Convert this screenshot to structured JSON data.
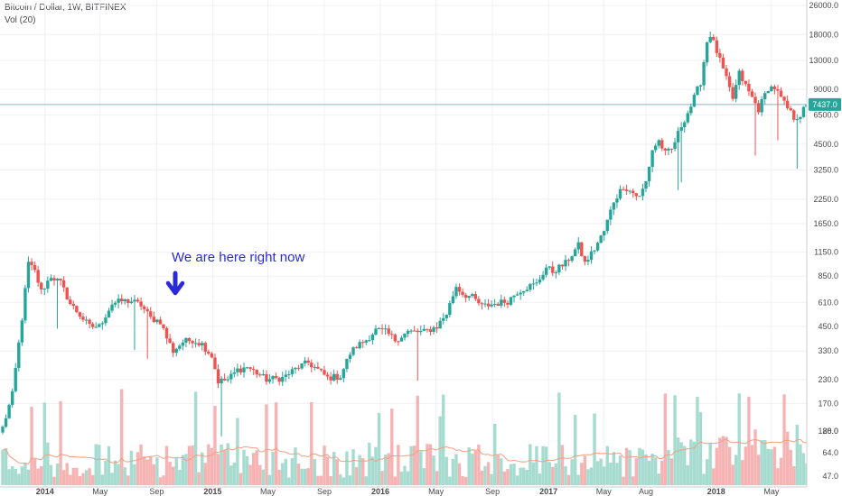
{
  "header": {
    "title": "Bitcoin / Dollar, 1W, BITFINEX",
    "volume_label": "Vol (20)"
  },
  "chart_data": {
    "type": "candlestick",
    "y_scale": "log",
    "price_ticks": [
      47.0,
      64.0,
      88.0,
      120.0,
      170.0,
      230.0,
      330.0,
      450.0,
      610.0,
      850.0,
      1150.0,
      1650.0,
      2250.0,
      3250.0,
      4500.0,
      6500.0,
      9000.0,
      13000.0,
      18000.0,
      26000.0
    ],
    "x_ticks": [
      "2014",
      "May",
      "Sep",
      "2015",
      "May",
      "Sep",
      "2016",
      "May",
      "Sep",
      "2017",
      "May",
      "Aug",
      "2018",
      "May"
    ],
    "current_price": "7437.0",
    "annotation": "We are here right now",
    "close_anchors": [
      [
        "2013-10-01",
        125
      ],
      [
        "2013-10-22",
        190
      ],
      [
        "2013-11-12",
        500
      ],
      [
        "2013-11-26",
        1000
      ],
      [
        "2013-12-10",
        900
      ],
      [
        "2013-12-24",
        700
      ],
      [
        "2014-01-14",
        850
      ],
      [
        "2014-02-04",
        780
      ],
      [
        "2014-02-25",
        600
      ],
      [
        "2014-03-18",
        520
      ],
      [
        "2014-04-08",
        450
      ],
      [
        "2014-04-29",
        450
      ],
      [
        "2014-05-27",
        600
      ],
      [
        "2014-06-17",
        620
      ],
      [
        "2014-07-08",
        620
      ],
      [
        "2014-07-29",
        590
      ],
      [
        "2014-08-19",
        500
      ],
      [
        "2014-09-09",
        480
      ],
      [
        "2014-09-23",
        390
      ],
      [
        "2014-10-07",
        330
      ],
      [
        "2014-10-28",
        370
      ],
      [
        "2014-11-18",
        380
      ],
      [
        "2014-12-09",
        360
      ],
      [
        "2014-12-30",
        310
      ],
      [
        "2015-01-13",
        225
      ],
      [
        "2015-02-03",
        230
      ],
      [
        "2015-02-24",
        260
      ],
      [
        "2015-03-17",
        270
      ],
      [
        "2015-04-07",
        250
      ],
      [
        "2015-04-28",
        230
      ],
      [
        "2015-06-02",
        235
      ],
      [
        "2015-07-07",
        270
      ],
      [
        "2015-07-28",
        285
      ],
      [
        "2015-08-18",
        260
      ],
      [
        "2015-09-08",
        235
      ],
      [
        "2015-10-06",
        240
      ],
      [
        "2015-10-27",
        320
      ],
      [
        "2015-11-10",
        350
      ],
      [
        "2015-12-01",
        380
      ],
      [
        "2015-12-22",
        430
      ],
      [
        "2016-01-12",
        420
      ],
      [
        "2016-02-02",
        380
      ],
      [
        "2016-03-01",
        420
      ],
      [
        "2016-04-05",
        420
      ],
      [
        "2016-05-03",
        450
      ],
      [
        "2016-05-24",
        530
      ],
      [
        "2016-06-14",
        750
      ],
      [
        "2016-06-28",
        680
      ],
      [
        "2016-07-19",
        650
      ],
      [
        "2016-08-09",
        580
      ],
      [
        "2016-09-06",
        600
      ],
      [
        "2016-10-04",
        620
      ],
      [
        "2016-10-25",
        700
      ],
      [
        "2016-11-15",
        740
      ],
      [
        "2016-12-06",
        770
      ],
      [
        "2016-12-27",
        950
      ],
      [
        "2017-01-10",
        900
      ],
      [
        "2017-02-07",
        1000
      ],
      [
        "2017-03-07",
        1250
      ],
      [
        "2017-03-21",
        1000
      ],
      [
        "2017-04-11",
        1200
      ],
      [
        "2017-05-02",
        1500
      ],
      [
        "2017-05-23",
        2200
      ],
      [
        "2017-06-13",
        2650
      ],
      [
        "2017-06-27",
        2500
      ],
      [
        "2017-07-18",
        2300
      ],
      [
        "2017-08-01",
        2800
      ],
      [
        "2017-08-15",
        4200
      ],
      [
        "2017-08-29",
        4700
      ],
      [
        "2017-09-12",
        4000
      ],
      [
        "2017-09-26",
        4200
      ],
      [
        "2017-10-17",
        5700
      ],
      [
        "2017-11-07",
        7300
      ],
      [
        "2017-11-28",
        9900
      ],
      [
        "2017-12-12",
        16500
      ],
      [
        "2017-12-19",
        18000
      ],
      [
        "2018-01-02",
        14500
      ],
      [
        "2018-01-16",
        11500
      ],
      [
        "2018-02-06",
        8000
      ],
      [
        "2018-02-20",
        11000
      ],
      [
        "2018-03-13",
        8700
      ],
      [
        "2018-04-03",
        7000
      ],
      [
        "2018-04-24",
        9200
      ],
      [
        "2018-05-08",
        9200
      ],
      [
        "2018-05-29",
        7500
      ],
      [
        "2018-06-19",
        6300
      ],
      [
        "2018-07-03",
        6500
      ],
      [
        "2018-07-17",
        7437
      ]
    ]
  },
  "colors": {
    "up": "#26a69a",
    "down": "#ef5350",
    "vol_up": "#a6dbcf",
    "vol_down": "#f6b3b3",
    "vol_ma": "#f0a080",
    "grid": "#eef0f3",
    "price_line": "#8fb0c8",
    "annotation": "#2b2bd6",
    "axis_text": "#4a4a4a",
    "price_label_bg": "#26a69a"
  }
}
